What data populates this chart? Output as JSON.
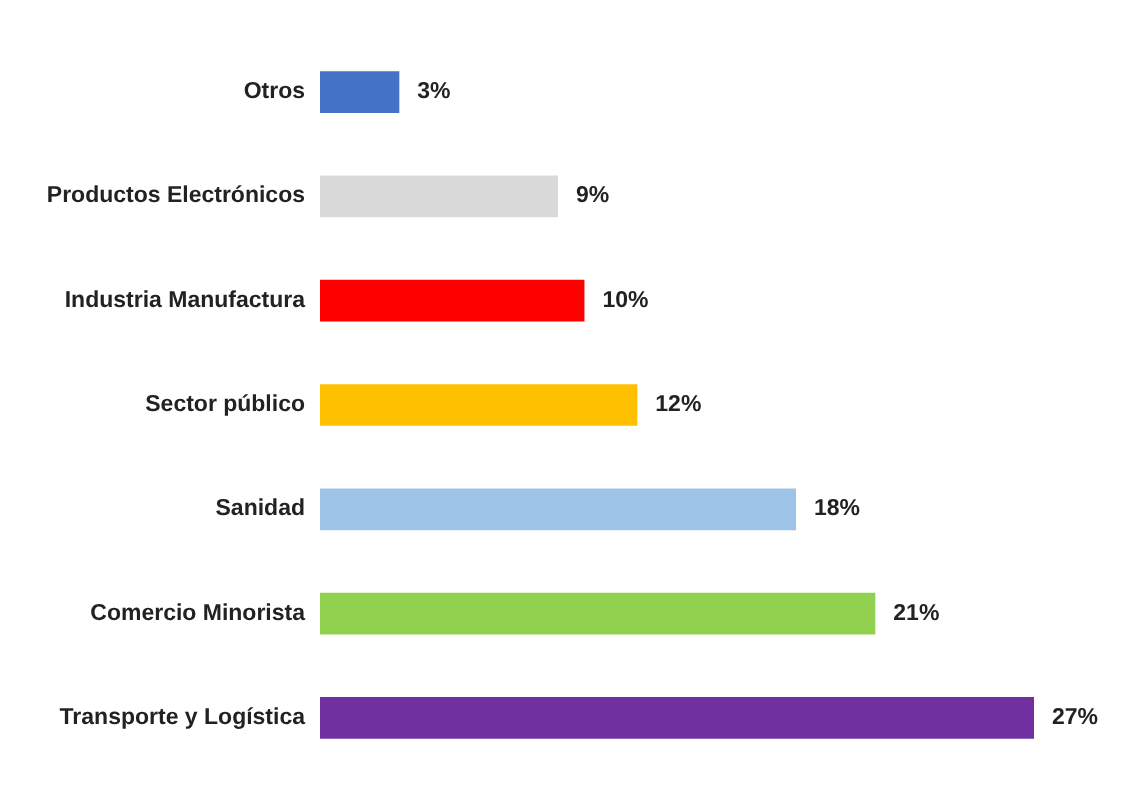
{
  "chart_data": {
    "type": "bar",
    "orientation": "horizontal",
    "categories": [
      "Otros",
      "Productos Electrónicos",
      "Industria Manufactura",
      "Sector público",
      "Sanidad",
      "Comercio Minorista",
      "Transporte y Logística"
    ],
    "values": [
      3,
      9,
      10,
      12,
      18,
      21,
      27
    ],
    "colors": [
      "#4472c4",
      "#d9d9d9",
      "#ff0000",
      "#ffc000",
      "#9dc3e6",
      "#92d050",
      "#7030a0"
    ],
    "value_labels": [
      "3%",
      "9%",
      "10%",
      "12%",
      "18%",
      "21%",
      "27%"
    ]
  }
}
